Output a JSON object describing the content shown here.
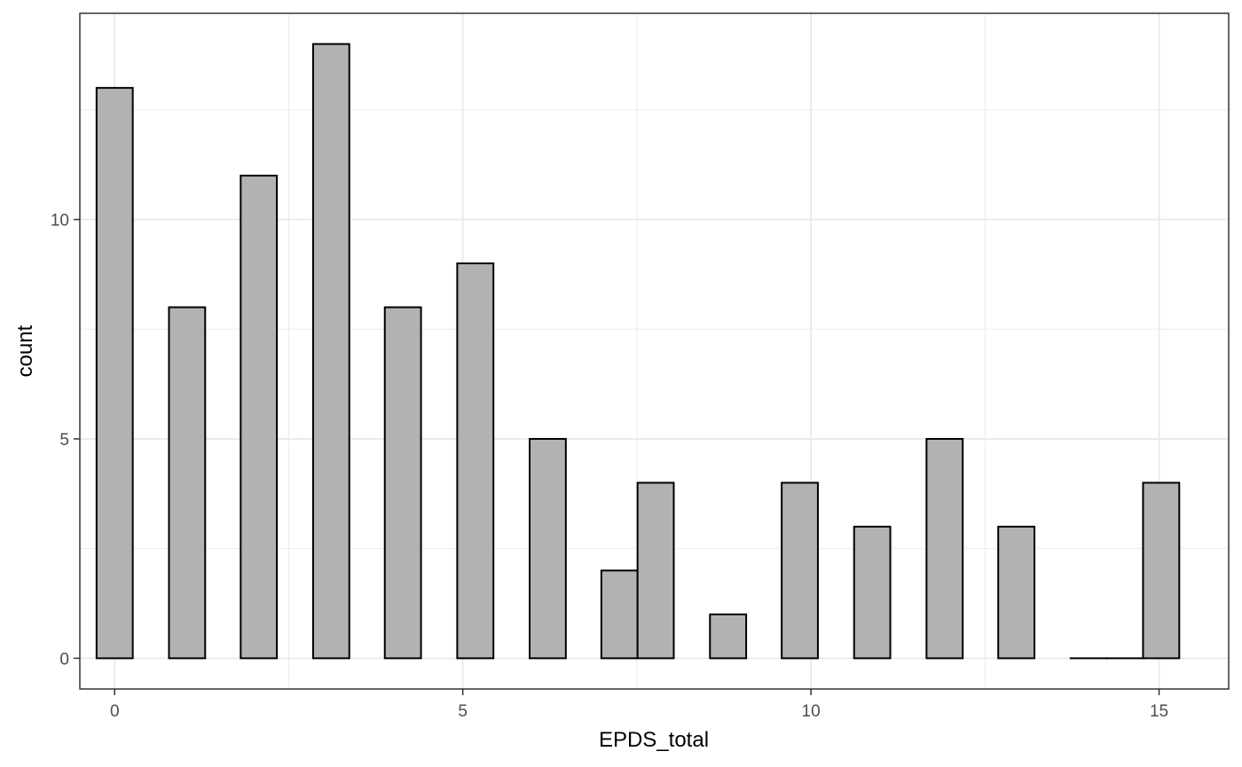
{
  "chart_data": {
    "type": "bar",
    "title": "",
    "xlabel": "EPDS_total",
    "ylabel": "count",
    "xlim": [
      -0.5,
      16.0
    ],
    "ylim": [
      -0.7,
      14.7
    ],
    "x_ticks": [
      0,
      5,
      10,
      15
    ],
    "y_ticks": [
      0,
      5,
      10
    ],
    "x_minor": [
      2.5,
      7.5,
      12.5
    ],
    "y_minor": [
      2.5,
      7.5,
      12.5
    ],
    "bin_width": 0.52,
    "bins": [
      {
        "x": 0.0,
        "count": 13
      },
      {
        "x": 1.04,
        "count": 8
      },
      {
        "x": 2.07,
        "count": 11
      },
      {
        "x": 3.11,
        "count": 14
      },
      {
        "x": 4.14,
        "count": 8
      },
      {
        "x": 5.18,
        "count": 9
      },
      {
        "x": 6.22,
        "count": 5
      },
      {
        "x": 7.25,
        "count": 2
      },
      {
        "x": 7.77,
        "count": 4
      },
      {
        "x": 8.81,
        "count": 1
      },
      {
        "x": 9.84,
        "count": 4
      },
      {
        "x": 10.88,
        "count": 3
      },
      {
        "x": 11.92,
        "count": 5
      },
      {
        "x": 12.95,
        "count": 3
      },
      {
        "x": 13.99,
        "count": 0
      },
      {
        "x": 14.51,
        "count": 0
      },
      {
        "x": 15.03,
        "count": 4
      }
    ],
    "grid": true,
    "legend": "none",
    "bar_fill": "#b2b2b2",
    "bar_stroke": "#000000"
  }
}
